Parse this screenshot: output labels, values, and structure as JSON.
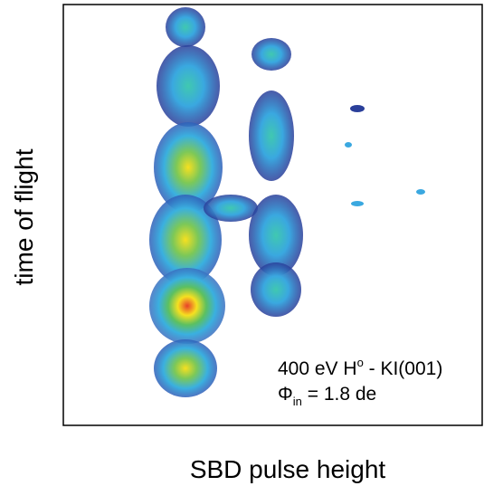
{
  "chart_data": {
    "type": "contour",
    "x_label": "SBD pulse height",
    "y_label": "time of flight",
    "annotation_line1": [
      "400 eV H",
      "o",
      " - KI(001)"
    ],
    "annotation_line2": [
      "Φ",
      "in",
      " = 1.8 de"
    ]
  }
}
